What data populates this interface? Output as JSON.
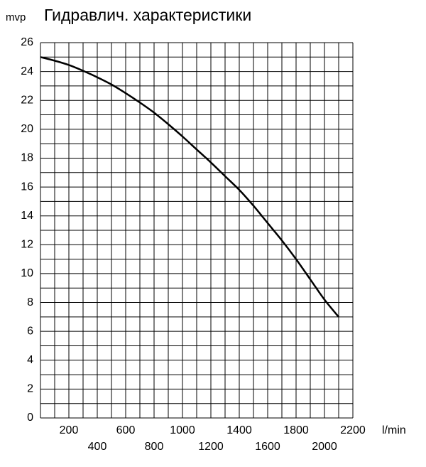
{
  "chart_data": {
    "type": "line",
    "title": "Гидравлич. характеристики",
    "ylabel": "mvp",
    "xlabel": "l/min",
    "x": [
      0,
      100,
      200,
      300,
      400,
      500,
      600,
      700,
      800,
      900,
      1000,
      1100,
      1200,
      1300,
      1400,
      1500,
      1600,
      1700,
      1800,
      1900,
      2000,
      2100
    ],
    "values": [
      25,
      24.75,
      24.45,
      24.05,
      23.6,
      23.1,
      22.5,
      21.85,
      21.15,
      20.35,
      19.5,
      18.6,
      17.7,
      16.75,
      15.8,
      14.7,
      13.5,
      12.3,
      11.0,
      9.6,
      8.2,
      7.0
    ],
    "color": "#000000",
    "xlim": [
      0,
      2200
    ],
    "ylim": [
      0,
      26
    ],
    "xticks": [
      200,
      400,
      600,
      800,
      1000,
      1200,
      1400,
      1600,
      1800,
      2000,
      2200
    ],
    "yticks": [
      0,
      2,
      4,
      6,
      8,
      10,
      12,
      14,
      16,
      18,
      20,
      22,
      24,
      26
    ],
    "xgrid": [
      0,
      100,
      200,
      300,
      400,
      500,
      600,
      700,
      800,
      900,
      1000,
      1100,
      1200,
      1300,
      1400,
      1500,
      1600,
      1700,
      1800,
      1900,
      2000,
      2100,
      2200
    ],
    "ygrid": [
      0,
      1,
      2,
      3,
      4,
      5,
      6,
      7,
      8,
      9,
      10,
      11,
      12,
      13,
      14,
      15,
      16,
      17,
      18,
      19,
      20,
      21,
      22,
      23,
      24,
      25,
      26
    ],
    "grid": true
  }
}
